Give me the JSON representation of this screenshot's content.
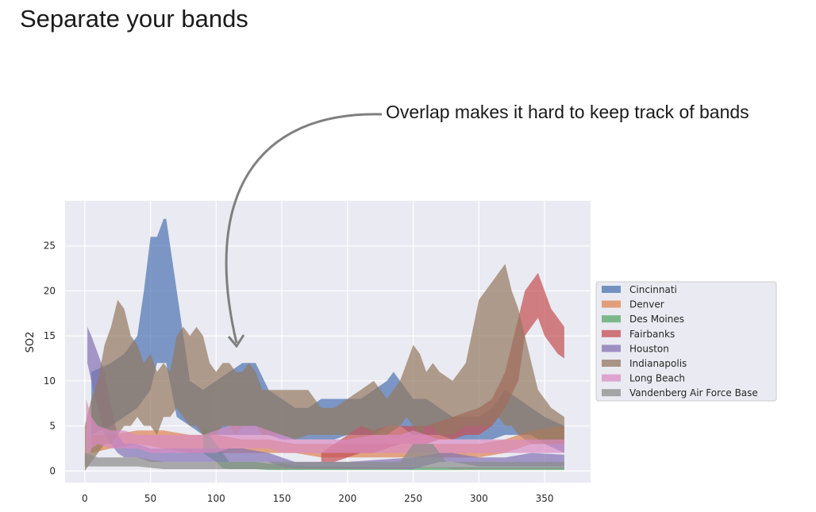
{
  "slide_title": "Separate your bands",
  "annotation": "Overlap makes it hard to keep track of bands",
  "chart_data": {
    "type": "area",
    "xlabel": "",
    "ylabel": "SO2",
    "xlim": [
      -15,
      385
    ],
    "ylim": [
      -1.3,
      30
    ],
    "xticks": [
      0,
      50,
      100,
      150,
      200,
      250,
      300,
      350
    ],
    "yticks": [
      0,
      5,
      10,
      15,
      20,
      25
    ],
    "grid": true,
    "legend_position": "right",
    "series": [
      {
        "name": "Cincinnati",
        "color": "#4c72b0",
        "x": [
          5,
          20,
          30,
          40,
          45,
          50,
          55,
          60,
          62,
          70,
          80,
          90,
          100,
          110,
          120,
          130,
          140,
          150,
          160,
          170,
          180,
          190,
          200,
          210,
          220,
          230,
          235,
          240,
          245,
          250,
          260,
          270,
          280,
          290,
          300,
          310,
          320,
          330,
          340,
          350,
          365
        ],
        "upper": [
          11,
          12,
          13,
          15,
          20,
          26,
          26,
          28,
          28,
          20,
          10,
          9,
          10,
          11,
          12,
          12,
          9,
          8,
          7,
          7,
          8,
          8,
          8,
          8,
          9,
          10,
          11,
          10,
          9,
          8,
          8,
          7,
          6,
          6,
          6,
          7,
          9,
          8,
          7,
          6,
          5
        ],
        "lower": [
          4,
          5,
          6,
          7,
          8,
          9,
          12,
          12,
          12,
          6,
          5,
          4,
          4,
          4,
          4,
          4,
          4,
          3.5,
          3.5,
          3.5,
          3.5,
          3.5,
          4,
          4,
          4,
          5,
          5,
          5,
          4.5,
          4,
          4,
          4,
          3.5,
          3.5,
          3.5,
          3.5,
          4,
          4,
          3,
          3,
          2
        ]
      },
      {
        "name": "Denver",
        "color": "#dd8452",
        "x": [
          5,
          20,
          40,
          60,
          80,
          100,
          120,
          140,
          160,
          180,
          200,
          220,
          240,
          260,
          280,
          300,
          320,
          340,
          365
        ],
        "upper": [
          4,
          4,
          4.5,
          4.5,
          4,
          4,
          3.5,
          3.5,
          3,
          3,
          3,
          3,
          3,
          3,
          3,
          3,
          3.5,
          4.5,
          5
        ],
        "lower": [
          2,
          2.5,
          3,
          2.5,
          2,
          2,
          2,
          2,
          2,
          1.5,
          1.5,
          1.5,
          1.5,
          1.5,
          1.5,
          1.5,
          2,
          3,
          3
        ]
      },
      {
        "name": "Des Moines",
        "color": "#55a868",
        "x": [
          90,
          95,
          100,
          105,
          110,
          120,
          130,
          140,
          150,
          160,
          170,
          180,
          190,
          200,
          220,
          240,
          260,
          280,
          300,
          320,
          340,
          360,
          365
        ],
        "upper": [
          5,
          4,
          3,
          2,
          1,
          1,
          1,
          0.8,
          0.8,
          0.6,
          0.5,
          0.5,
          0.5,
          0.5,
          0.4,
          0.4,
          0.4,
          0.4,
          0.4,
          0.4,
          0.4,
          0.4,
          0.4
        ],
        "lower": [
          2,
          1.5,
          1,
          0.3,
          0.2,
          0.2,
          0.2,
          0.1,
          0.1,
          0.1,
          0.1,
          0.1,
          0.1,
          0.1,
          0.1,
          0.1,
          0.1,
          0.1,
          0.1,
          0.1,
          0.1,
          0.1,
          0.1
        ]
      },
      {
        "name": "Fairbanks",
        "color": "#c44e52",
        "x": [
          180,
          190,
          200,
          210,
          220,
          230,
          240,
          250,
          260,
          270,
          280,
          290,
          300,
          310,
          320,
          330,
          335,
          340,
          345,
          350,
          355,
          360,
          365
        ],
        "upper": [
          2,
          3,
          4,
          5,
          4.5,
          5,
          5,
          5,
          5,
          5.5,
          6,
          6.5,
          7,
          8,
          11,
          17,
          20,
          21,
          22,
          20,
          18,
          17,
          16
        ],
        "lower": [
          1,
          1,
          1.5,
          2,
          2,
          2.5,
          3,
          3,
          3,
          3.5,
          3.5,
          4,
          4,
          5,
          7,
          10,
          15,
          16,
          17,
          15,
          14,
          13,
          12.5
        ]
      },
      {
        "name": "Houston",
        "color": "#8172b2",
        "x": [
          2,
          5,
          10,
          15,
          20,
          25,
          30,
          40,
          50,
          60,
          70,
          80,
          90,
          100,
          120,
          140,
          150,
          160,
          200,
          250,
          270,
          280,
          300,
          320,
          340,
          365
        ],
        "upper": [
          16,
          15,
          13,
          11,
          7,
          4,
          3,
          3,
          2.5,
          2.5,
          2.5,
          2.5,
          2.5,
          2.5,
          2.5,
          2,
          1.5,
          1,
          1,
          1.5,
          2,
          2,
          1.5,
          1.5,
          2,
          1.8
        ],
        "lower": [
          12,
          10,
          7,
          4,
          3,
          2,
          1.5,
          1.5,
          1,
          1,
          1,
          1,
          1,
          1,
          1,
          1,
          0.5,
          0.3,
          0.2,
          0.2,
          1,
          1,
          0.5,
          0.5,
          0.5,
          0.5
        ]
      },
      {
        "name": "Indianapolis",
        "color": "#937860",
        "x": [
          0,
          5,
          10,
          15,
          20,
          25,
          30,
          35,
          40,
          45,
          50,
          55,
          60,
          65,
          70,
          75,
          80,
          85,
          90,
          95,
          100,
          105,
          110,
          115,
          120,
          125,
          130,
          135,
          140,
          145,
          150,
          160,
          170,
          180,
          190,
          200,
          210,
          220,
          230,
          240,
          245,
          250,
          255,
          260,
          265,
          270,
          280,
          290,
          300,
          305,
          310,
          315,
          320,
          325,
          330,
          335,
          340,
          345,
          350,
          355,
          365
        ],
        "upper": [
          5,
          8,
          10,
          14,
          16,
          19,
          18,
          15,
          14,
          12,
          13,
          11,
          12,
          11,
          15,
          16,
          15,
          16,
          15,
          12,
          11,
          12,
          12,
          11,
          11,
          12,
          11,
          9,
          9,
          9,
          9,
          9,
          9,
          7,
          7,
          8,
          9,
          10,
          8,
          10,
          12,
          14,
          13,
          11,
          12,
          11,
          10,
          12,
          19,
          20,
          21,
          22,
          23,
          20,
          18,
          15,
          12,
          9,
          8,
          7,
          6
        ],
        "lower": [
          0,
          1,
          2,
          3,
          3,
          4,
          5,
          5,
          6,
          5,
          5,
          4,
          6,
          6,
          7,
          6,
          5,
          5,
          4,
          4,
          4,
          5,
          5,
          4,
          5,
          5,
          5,
          4,
          4,
          4,
          4,
          3.5,
          4,
          4,
          4,
          4,
          5,
          4,
          4,
          5,
          6,
          5,
          4,
          5,
          5,
          4,
          4,
          5,
          5,
          5,
          5,
          6,
          5,
          5,
          4,
          4,
          4,
          3.5,
          3,
          3,
          3
        ]
      },
      {
        "name": "Long Beach",
        "color": "#da8bc3",
        "x": [
          1,
          3,
          5,
          10,
          20,
          30,
          40,
          50,
          60,
          70,
          80,
          90,
          100,
          110,
          120,
          130,
          140,
          150,
          160,
          180,
          200,
          220,
          240,
          250,
          260,
          270,
          280,
          300,
          320,
          340,
          365
        ],
        "upper": [
          8,
          7,
          6,
          5,
          4.5,
          4.5,
          4,
          4,
          4,
          4,
          4,
          4,
          4.5,
          5,
          5,
          5,
          4.5,
          4,
          3.5,
          3.5,
          3.5,
          4,
          4,
          4.5,
          4,
          3.5,
          3.5,
          3.5,
          3.5,
          3.5,
          3.5
        ],
        "lower": [
          2,
          2,
          2.5,
          3,
          2.5,
          2.5,
          2.5,
          2,
          2,
          2,
          2,
          2,
          2,
          2.5,
          2.5,
          2.5,
          2.5,
          2,
          2,
          2,
          2,
          2,
          2,
          2,
          2,
          2,
          2,
          2,
          2,
          2,
          2
        ]
      },
      {
        "name": "Vandenberg Air Force Base",
        "color": "#8c8c8c",
        "x": [
          0,
          10,
          20,
          40,
          60,
          80,
          100,
          120,
          140,
          160,
          180,
          200,
          220,
          240,
          245,
          250,
          255,
          260,
          265,
          270,
          275,
          280,
          300,
          320,
          340,
          365
        ],
        "upper": [
          2,
          1.5,
          1.5,
          1.5,
          1,
          1,
          1,
          1,
          1,
          1,
          1,
          1,
          1,
          1,
          2,
          3,
          3,
          3,
          3,
          2,
          1,
          1,
          1,
          1,
          1,
          1
        ],
        "lower": [
          0.5,
          0.5,
          0.5,
          0.5,
          0.2,
          0.2,
          0.2,
          0.2,
          0.2,
          0.2,
          0.2,
          0.2,
          0.2,
          0.2,
          0.3,
          0.3,
          0.3,
          0.3,
          0.3,
          0.3,
          0.3,
          0.2,
          0.2,
          0.2,
          0.2,
          0.2
        ]
      }
    ]
  }
}
